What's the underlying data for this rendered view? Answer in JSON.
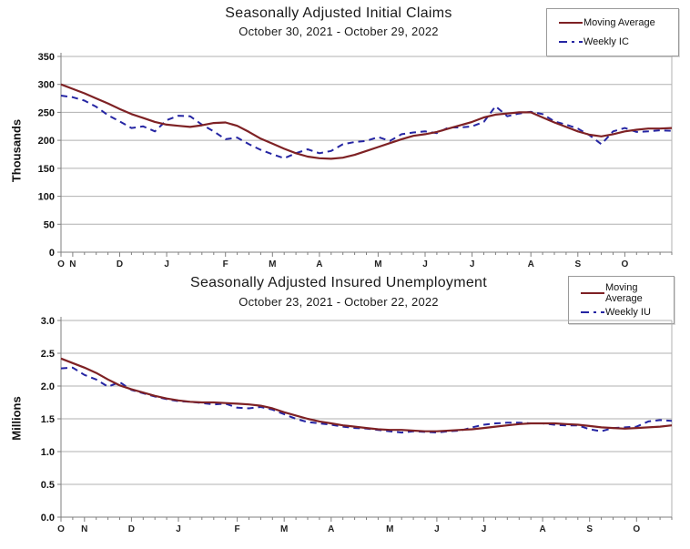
{
  "page": {
    "background": "#ffffff"
  },
  "colors": {
    "moving_average": "#7e2124",
    "weekly": "#2525a3",
    "grid": "#b0b0b0",
    "axis": "#7f7f7f",
    "text": "#1a1a1a"
  },
  "chart_data": [
    {
      "type": "line",
      "title": "Seasonally Adjusted Initial Claims",
      "subtitle": "October 30, 2021 - October 29, 2022",
      "ylabel": "Thousands",
      "xlabel": "",
      "ylim": [
        0,
        350
      ],
      "grid": "horizontal",
      "legend_position": "top-right",
      "yticks": [
        {
          "value": 0,
          "label": "0"
        },
        {
          "value": 50,
          "label": "50"
        },
        {
          "value": 100,
          "label": "100"
        },
        {
          "value": 150,
          "label": "150"
        },
        {
          "value": 200,
          "label": "200"
        },
        {
          "value": 250,
          "label": "250"
        },
        {
          "value": 300,
          "label": "300"
        },
        {
          "value": 350,
          "label": "350"
        }
      ],
      "x_ticks": [
        {
          "week": 0,
          "label": "O"
        },
        {
          "week": 1,
          "label": "N"
        },
        {
          "week": 5,
          "label": "D"
        },
        {
          "week": 9,
          "label": "J"
        },
        {
          "week": 14,
          "label": "F"
        },
        {
          "week": 18,
          "label": "M"
        },
        {
          "week": 22,
          "label": "A"
        },
        {
          "week": 27,
          "label": "M"
        },
        {
          "week": 31,
          "label": "J"
        },
        {
          "week": 35,
          "label": "J"
        },
        {
          "week": 40,
          "label": "A"
        },
        {
          "week": 44,
          "label": "S"
        },
        {
          "week": 48,
          "label": "O"
        }
      ],
      "series": [
        {
          "name": "Moving Average",
          "style": "solid",
          "values": [
            300,
            292,
            284,
            275,
            266,
            256,
            247,
            240,
            233,
            228,
            226,
            224,
            227,
            231,
            232,
            226,
            215,
            203,
            194,
            185,
            177,
            171,
            168,
            167,
            169,
            174,
            181,
            188,
            195,
            202,
            208,
            211,
            215,
            221,
            227,
            233,
            241,
            246,
            248,
            250,
            250,
            241,
            232,
            224,
            216,
            210,
            207,
            211,
            216,
            219,
            221,
            221,
            222
          ]
        },
        {
          "name": "Weekly IC",
          "style": "dashed",
          "values": [
            280,
            277,
            271,
            260,
            245,
            234,
            222,
            225,
            216,
            236,
            244,
            243,
            228,
            216,
            202,
            205,
            193,
            183,
            175,
            168,
            177,
            184,
            177,
            181,
            193,
            197,
            199,
            206,
            199,
            211,
            214,
            216,
            213,
            223,
            223,
            225,
            233,
            261,
            243,
            248,
            251,
            247,
            234,
            228,
            221,
            209,
            193,
            216,
            222,
            215,
            216,
            218,
            217
          ]
        }
      ]
    },
    {
      "type": "line",
      "title": "Seasonally Adjusted Insured Unemployment",
      "subtitle": "October 23, 2021 - October 22, 2022",
      "ylabel": "Millions",
      "xlabel": "",
      "ylim": [
        0,
        3.0
      ],
      "grid": "horizontal",
      "legend_position": "top-right",
      "yticks": [
        {
          "value": 0,
          "label": "0.0"
        },
        {
          "value": 0.5,
          "label": "0.5"
        },
        {
          "value": 1.0,
          "label": "1.0"
        },
        {
          "value": 1.5,
          "label": "1.5"
        },
        {
          "value": 2.0,
          "label": "2.0"
        },
        {
          "value": 2.5,
          "label": "2.5"
        },
        {
          "value": 3.0,
          "label": "3.0"
        }
      ],
      "x_ticks": [
        {
          "week": 0,
          "label": "O"
        },
        {
          "week": 2,
          "label": "N"
        },
        {
          "week": 6,
          "label": "D"
        },
        {
          "week": 10,
          "label": "J"
        },
        {
          "week": 15,
          "label": "F"
        },
        {
          "week": 19,
          "label": "M"
        },
        {
          "week": 23,
          "label": "A"
        },
        {
          "week": 28,
          "label": "M"
        },
        {
          "week": 32,
          "label": "J"
        },
        {
          "week": 36,
          "label": "J"
        },
        {
          "week": 41,
          "label": "A"
        },
        {
          "week": 45,
          "label": "S"
        },
        {
          "week": 49,
          "label": "O"
        }
      ],
      "series": [
        {
          "name": "Moving Average",
          "style": "solid",
          "values": [
            2.42,
            2.35,
            2.28,
            2.2,
            2.1,
            2.01,
            1.95,
            1.9,
            1.85,
            1.81,
            1.78,
            1.76,
            1.75,
            1.75,
            1.74,
            1.73,
            1.72,
            1.7,
            1.66,
            1.6,
            1.55,
            1.5,
            1.46,
            1.43,
            1.4,
            1.38,
            1.36,
            1.34,
            1.33,
            1.33,
            1.32,
            1.31,
            1.31,
            1.32,
            1.33,
            1.34,
            1.36,
            1.38,
            1.4,
            1.42,
            1.43,
            1.43,
            1.43,
            1.42,
            1.41,
            1.39,
            1.37,
            1.36,
            1.35,
            1.36,
            1.37,
            1.38,
            1.4
          ]
        },
        {
          "name": "Weekly IU",
          "style": "dashed",
          "values": [
            2.27,
            2.28,
            2.17,
            2.1,
            1.99,
            2.06,
            1.94,
            1.89,
            1.84,
            1.8,
            1.77,
            1.76,
            1.74,
            1.72,
            1.73,
            1.67,
            1.66,
            1.68,
            1.64,
            1.57,
            1.5,
            1.45,
            1.43,
            1.41,
            1.38,
            1.36,
            1.35,
            1.33,
            1.31,
            1.29,
            1.31,
            1.3,
            1.29,
            1.31,
            1.32,
            1.37,
            1.41,
            1.43,
            1.44,
            1.44,
            1.43,
            1.43,
            1.41,
            1.4,
            1.4,
            1.34,
            1.31,
            1.36,
            1.37,
            1.38,
            1.46,
            1.48,
            1.47
          ]
        }
      ]
    }
  ]
}
